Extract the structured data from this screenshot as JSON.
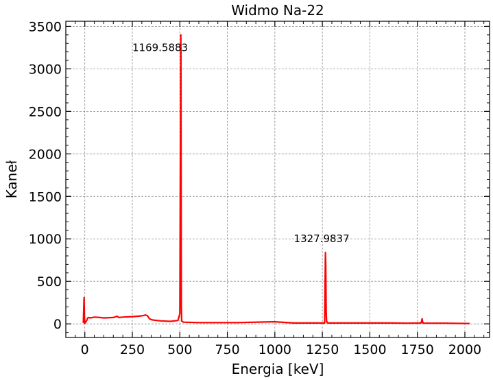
{
  "chart_data": {
    "type": "line",
    "title": "Widmo Na-22",
    "xlabel": "Energia [keV]",
    "ylabel": "Kaneł",
    "xlim": [
      -100,
      2130
    ],
    "ylim": [
      -160,
      3560
    ],
    "xticks": [
      0,
      250,
      500,
      750,
      1000,
      1250,
      1500,
      1750,
      2000
    ],
    "yticks": [
      0,
      500,
      1000,
      1500,
      2000,
      2500,
      3000,
      3500
    ],
    "grid": true,
    "line_color": "#ff0000",
    "series": [
      {
        "x": [
          -8,
          -4,
          -2,
          0,
          4,
          10,
          15,
          20,
          30,
          50,
          80,
          100,
          150,
          170,
          175,
          180,
          200,
          250,
          280,
          300,
          320,
          330,
          340,
          350,
          360,
          400,
          450,
          490,
          500,
          503,
          505,
          506,
          507,
          508,
          510,
          515,
          520,
          600,
          800,
          1000,
          1100,
          1200,
          1250,
          1262,
          1266,
          1268,
          1270,
          1272,
          1275,
          1280,
          1300,
          1500,
          1600,
          1700,
          1770,
          1775,
          1777,
          1780,
          1785,
          1800,
          1900,
          2000,
          2025
        ],
        "y": [
          10,
          310,
          80,
          5,
          20,
          40,
          70,
          75,
          70,
          80,
          75,
          70,
          75,
          90,
          80,
          75,
          80,
          85,
          90,
          95,
          105,
          95,
          60,
          50,
          45,
          35,
          30,
          40,
          120,
          2000,
          3400,
          3200,
          1500,
          200,
          35,
          25,
          20,
          15,
          15,
          25,
          10,
          10,
          10,
          10,
          840,
          700,
          150,
          40,
          15,
          10,
          10,
          10,
          10,
          8,
          10,
          60,
          30,
          10,
          8,
          8,
          8,
          5,
          5
        ]
      }
    ],
    "annotations": [
      {
        "text": "1169.5883",
        "x": 250,
        "y": 3250
      },
      {
        "text": "1327.9837",
        "x": 1100,
        "y": 1000
      }
    ]
  }
}
